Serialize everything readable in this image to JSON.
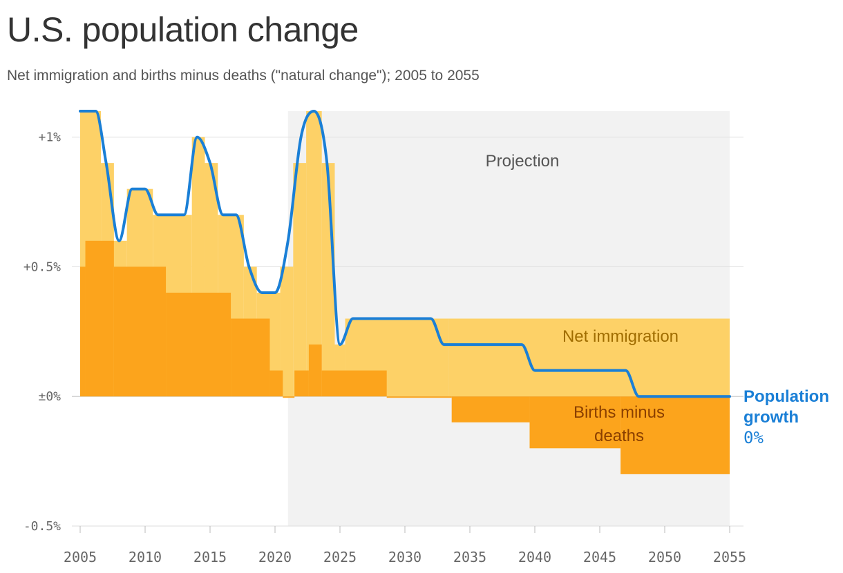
{
  "title": "U.S. population change",
  "subtitle": "Net immigration and births minus deaths (\"natural change\"); 2005 to 2055",
  "chart_data": {
    "type": "area",
    "xlim": [
      2005,
      2055
    ],
    "ylim": [
      -0.5,
      1.1
    ],
    "yticks": [
      {
        "value": 1.0,
        "label": "+1%"
      },
      {
        "value": 0.5,
        "label": "+0.5%"
      },
      {
        "value": 0.0,
        "label": "±0%"
      },
      {
        "value": -0.5,
        "label": "-0.5%"
      }
    ],
    "xticks": [
      {
        "value": 2005,
        "label": "2005"
      },
      {
        "value": 2010,
        "label": "2010"
      },
      {
        "value": 2015,
        "label": "2015"
      },
      {
        "value": 2020,
        "label": "2020"
      },
      {
        "value": 2025,
        "label": "2025"
      },
      {
        "value": 2030,
        "label": "2030"
      },
      {
        "value": 2035,
        "label": "2035"
      },
      {
        "value": 2040,
        "label": "2040"
      },
      {
        "value": 2045,
        "label": "2045"
      },
      {
        "value": 2050,
        "label": "2050"
      },
      {
        "value": 2055,
        "label": "2055"
      }
    ],
    "projection": {
      "start": 2021,
      "end": 2055,
      "label": "Projection"
    },
    "series": [
      {
        "name": "Births minus deaths",
        "label": "Births minus\ndeaths",
        "color": "#fca41c",
        "steps": [
          {
            "x0": 2005,
            "x1": 2005.4,
            "value": 0.5
          },
          {
            "x0": 2005.4,
            "x1": 2007.6,
            "value": 0.6
          },
          {
            "x0": 2007.6,
            "x1": 2011.6,
            "value": 0.5
          },
          {
            "x0": 2011.6,
            "x1": 2016.6,
            "value": 0.4
          },
          {
            "x0": 2016.6,
            "x1": 2019.6,
            "value": 0.3
          },
          {
            "x0": 2019.6,
            "x1": 2020.6,
            "value": 0.1
          },
          {
            "x0": 2020.6,
            "x1": 2021.5,
            "value": 0.0
          },
          {
            "x0": 2021.5,
            "x1": 2022.6,
            "value": 0.1
          },
          {
            "x0": 2022.6,
            "x1": 2023.6,
            "value": 0.2
          },
          {
            "x0": 2023.6,
            "x1": 2028.6,
            "value": 0.1
          },
          {
            "x0": 2028.6,
            "x1": 2033.6,
            "value": 0.0
          },
          {
            "x0": 2033.6,
            "x1": 2039.6,
            "value": -0.1
          },
          {
            "x0": 2039.6,
            "x1": 2046.6,
            "value": -0.2
          },
          {
            "x0": 2046.6,
            "x1": 2055,
            "value": -0.3
          }
        ]
      },
      {
        "name": "Net immigration",
        "label": "Net immigration",
        "color": "#fdd167",
        "steps": [
          {
            "x0": 2005,
            "x1": 2006.6,
            "value": 1.1
          },
          {
            "x0": 2006.6,
            "x1": 2007.6,
            "value": 0.9
          },
          {
            "x0": 2007.6,
            "x1": 2008.6,
            "value": 0.6
          },
          {
            "x0": 2008.6,
            "x1": 2010.6,
            "value": 0.8
          },
          {
            "x0": 2010.6,
            "x1": 2013.6,
            "value": 0.7
          },
          {
            "x0": 2013.6,
            "x1": 2014.6,
            "value": 1.0
          },
          {
            "x0": 2014.6,
            "x1": 2015.6,
            "value": 0.9
          },
          {
            "x0": 2015.6,
            "x1": 2017.6,
            "value": 0.7
          },
          {
            "x0": 2017.6,
            "x1": 2018.6,
            "value": 0.5
          },
          {
            "x0": 2018.6,
            "x1": 2020.4,
            "value": 0.4
          },
          {
            "x0": 2020.4,
            "x1": 2021.4,
            "value": 0.5
          },
          {
            "x0": 2021.4,
            "x1": 2022.4,
            "value": 0.9
          },
          {
            "x0": 2022.4,
            "x1": 2023.6,
            "value": 1.1
          },
          {
            "x0": 2023.6,
            "x1": 2024.6,
            "value": 0.9
          },
          {
            "x0": 2024.6,
            "x1": 2025.4,
            "value": 0.2
          },
          {
            "x0": 2025.4,
            "x1": 2033.4,
            "value": 0.3
          },
          {
            "x0": 2033.4,
            "x1": 2055,
            "value": 0.3
          }
        ]
      },
      {
        "name": "Population growth",
        "label": "Population\ngrowth",
        "value_label": "0%",
        "color": "#1a7fd6",
        "points": [
          [
            2005,
            1.1
          ],
          [
            2006.2,
            1.1
          ],
          [
            2007.0,
            0.9
          ],
          [
            2008.0,
            0.6
          ],
          [
            2009.0,
            0.8
          ],
          [
            2010.0,
            0.8
          ],
          [
            2011.0,
            0.7
          ],
          [
            2013.0,
            0.7
          ],
          [
            2014.0,
            1.0
          ],
          [
            2015.0,
            0.9
          ],
          [
            2016.0,
            0.7
          ],
          [
            2017.0,
            0.7
          ],
          [
            2018.0,
            0.5
          ],
          [
            2019.0,
            0.4
          ],
          [
            2020.0,
            0.4
          ],
          [
            2021.0,
            0.6
          ],
          [
            2022.0,
            1.0
          ],
          [
            2023.0,
            1.1
          ],
          [
            2024.0,
            0.9
          ],
          [
            2025.0,
            0.2
          ],
          [
            2026.0,
            0.3
          ],
          [
            2032.0,
            0.3
          ],
          [
            2033.0,
            0.2
          ],
          [
            2039.0,
            0.2
          ],
          [
            2040.0,
            0.1
          ],
          [
            2047.0,
            0.1
          ],
          [
            2048.0,
            0.0
          ],
          [
            2055.0,
            0.0
          ]
        ]
      }
    ]
  }
}
